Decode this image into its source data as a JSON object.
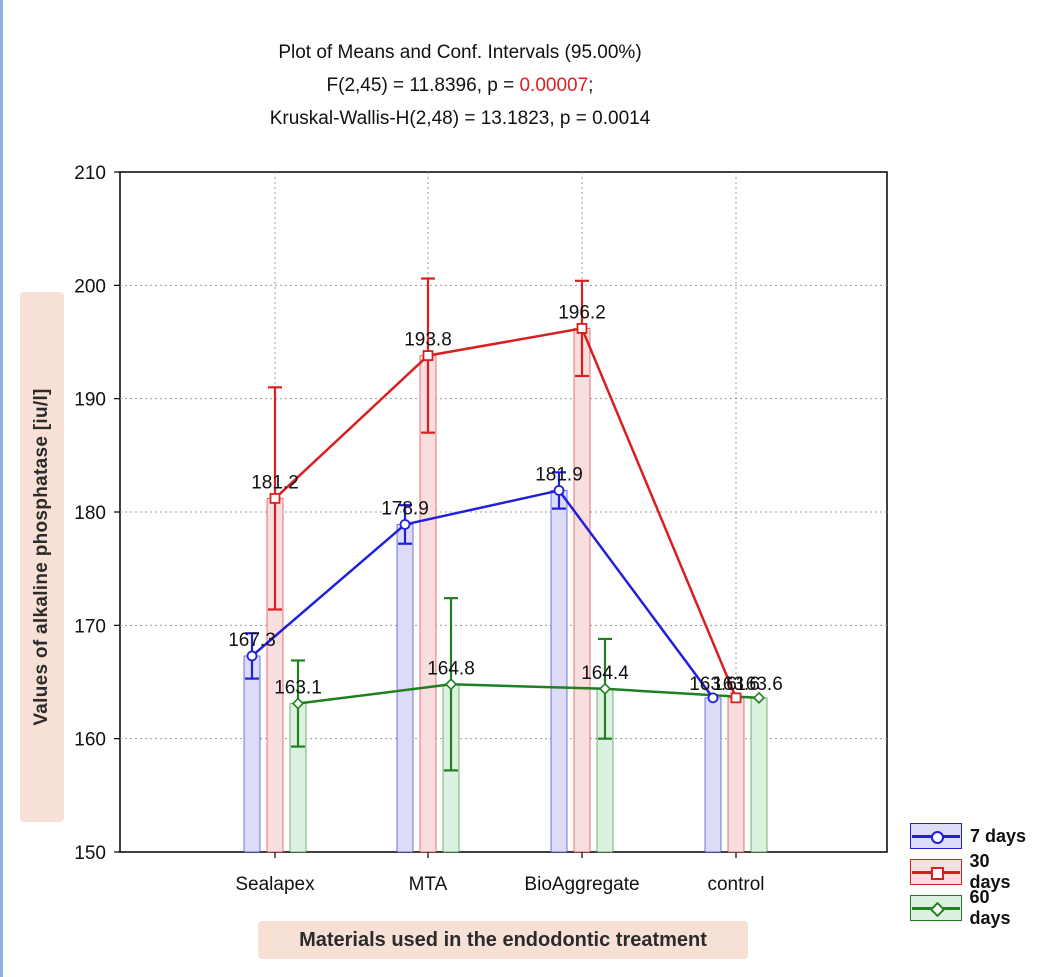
{
  "title_lines": {
    "line1": "Plot of Means and Conf. Intervals (95.00%)",
    "line2_prefix": "F(2,45) = 11.8396, p = ",
    "line2_p": "0.00007",
    "line2_suffix": ";",
    "line3": "Kruskal-Wallis-H(2,48) = 13.1823, p = 0.0014"
  },
  "colors": {
    "7 days": "#2020d8",
    "30 days": "#d82020",
    "60 days": "#208020",
    "highlight_p": "#e02020"
  },
  "chart_data": {
    "type": "line",
    "title": "Plot of Means and Conf. Intervals (95.00%)",
    "xlabel": "Materials  used in the endodontic treatment",
    "ylabel": "Values of alkaline phosphatase  [iu/l]",
    "ylim": [
      150,
      210
    ],
    "yticks": [
      "210",
      "200",
      "190",
      "180",
      "170",
      "160",
      "150"
    ],
    "categories": [
      "Sealapex",
      "MTA",
      "BioAggregate",
      "control"
    ],
    "grid": true,
    "legend_position": "bottom-right",
    "series": [
      {
        "name": "7 days",
        "values": [
          167.3,
          178.9,
          181.9,
          163.6
        ],
        "ci_low": [
          165.3,
          177.2,
          180.3,
          163.6
        ],
        "ci_high": [
          169.3,
          180.6,
          183.5,
          163.6
        ],
        "labels": [
          "167.3",
          "178.9",
          "181.9",
          "163.6"
        ]
      },
      {
        "name": "30 days",
        "values": [
          181.2,
          193.8,
          196.2,
          163.6
        ],
        "ci_low": [
          171.4,
          187.0,
          192.0,
          163.6
        ],
        "ci_high": [
          191.0,
          200.6,
          200.4,
          163.6
        ],
        "labels": [
          "181.2",
          "193.8",
          "196.2",
          "163.6"
        ]
      },
      {
        "name": "60 days",
        "values": [
          163.1,
          164.8,
          164.4,
          163.6
        ],
        "ci_low": [
          159.3,
          157.2,
          160.0,
          163.6
        ],
        "ci_high": [
          166.9,
          172.4,
          168.8,
          163.6
        ],
        "labels": [
          "163.1",
          "164.8",
          "164.4",
          "163.6"
        ]
      }
    ]
  }
}
